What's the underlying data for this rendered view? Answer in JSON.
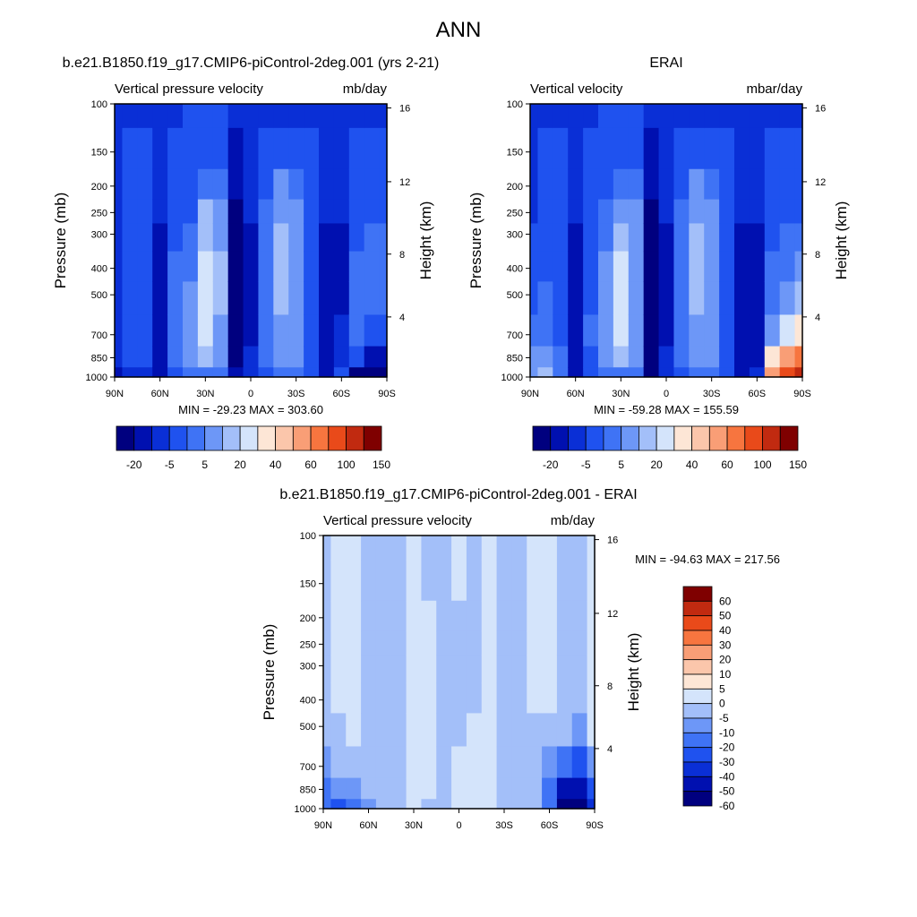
{
  "title": "ANN",
  "colors": {
    "main_scale": [
      "#00007f",
      "#0010b0",
      "#0a2fd6",
      "#1f52ef",
      "#3f73f5",
      "#6d97f7",
      "#a3bff9",
      "#d4e4fb",
      "#fde6d6",
      "#fbc6ab",
      "#f99e76",
      "#f7753f",
      "#e94a1a",
      "#c12a10",
      "#7f0000"
    ],
    "diff_scale": [
      "#00007f",
      "#0010b0",
      "#0a2fd6",
      "#1f52ef",
      "#3f73f5",
      "#6d97f7",
      "#a3bff9",
      "#d4e4fb",
      "#fde6d6",
      "#fbc6ab",
      "#f99e76",
      "#f7753f",
      "#e94a1a",
      "#c12a10",
      "#7f0000"
    ]
  },
  "chart_data": [
    {
      "type": "heatmap",
      "title": "b.e21.B1850.f19_g17.CMIP6-piControl-2deg.001 (yrs 2-21)",
      "left_label": "Vertical pressure velocity",
      "units": "mb/day",
      "ylabel": "Pressure (mb)",
      "y2label": "Height (km)",
      "xticks": [
        "90N",
        "60N",
        "30N",
        "0",
        "30S",
        "60S",
        "90S"
      ],
      "yticks": [
        "100",
        "150",
        "200",
        "250",
        "300",
        "400",
        "500",
        "700",
        "850",
        "1000"
      ],
      "y2ticks": [
        "16",
        "12",
        "8",
        "4"
      ],
      "stats": "MIN = -29.23  MAX = 303.60",
      "colorbar_labels": [
        "-20",
        "-5",
        "5",
        "20",
        "40",
        "60",
        "100",
        "150"
      ],
      "field": [
        {
          "lat": 90,
          "v": [
            -12,
            -12,
            -12,
            -12,
            -12,
            -12,
            -12,
            -12,
            -14,
            -16
          ]
        },
        {
          "lat": 80,
          "v": [
            -12,
            -10,
            -10,
            -10,
            -8,
            -8,
            -8,
            -6,
            -8,
            -12
          ]
        },
        {
          "lat": 70,
          "v": [
            -12,
            -10,
            -10,
            -8,
            -6,
            -6,
            -6,
            -6,
            -10,
            -14
          ]
        },
        {
          "lat": 60,
          "v": [
            -12,
            -12,
            -12,
            -14,
            -16,
            -16,
            -16,
            -18,
            -20,
            -20
          ]
        },
        {
          "lat": 50,
          "v": [
            -12,
            -10,
            -10,
            -8,
            -6,
            -4,
            -4,
            -2,
            -4,
            -10
          ]
        },
        {
          "lat": 40,
          "v": [
            -10,
            -8,
            -8,
            -6,
            -4,
            -2,
            2,
            4,
            2,
            -4
          ]
        },
        {
          "lat": 30,
          "v": [
            -10,
            -6,
            -2,
            5,
            8,
            10,
            12,
            12,
            8,
            -2
          ]
        },
        {
          "lat": 20,
          "v": [
            -10,
            -6,
            -2,
            2,
            4,
            6,
            6,
            4,
            2,
            -4
          ]
        },
        {
          "lat": 10,
          "v": [
            -12,
            -16,
            -20,
            -22,
            -25,
            -26,
            -27,
            -27,
            -26,
            -20
          ]
        },
        {
          "lat": 0,
          "v": [
            -12,
            -12,
            -14,
            -14,
            -16,
            -16,
            -16,
            -16,
            -14,
            -12
          ]
        },
        {
          "lat": -10,
          "v": [
            -12,
            -10,
            -8,
            -4,
            -2,
            -2,
            -2,
            -2,
            -4,
            -6
          ]
        },
        {
          "lat": -20,
          "v": [
            -12,
            -6,
            0,
            4,
            6,
            6,
            6,
            4,
            2,
            -2
          ]
        },
        {
          "lat": -30,
          "v": [
            -12,
            -8,
            -4,
            0,
            2,
            2,
            2,
            2,
            0,
            -4
          ]
        },
        {
          "lat": -40,
          "v": [
            -12,
            -10,
            -8,
            -6,
            -6,
            -6,
            -6,
            -6,
            -6,
            -8
          ]
        },
        {
          "lat": -50,
          "v": [
            -12,
            -12,
            -12,
            -14,
            -16,
            -18,
            -18,
            -18,
            -18,
            -16
          ]
        },
        {
          "lat": -60,
          "v": [
            -12,
            -12,
            -12,
            -14,
            -16,
            -16,
            -16,
            -14,
            -12,
            -10
          ]
        },
        {
          "lat": -70,
          "v": [
            -12,
            -10,
            -10,
            -8,
            -6,
            -4,
            -2,
            -2,
            -10,
            -22
          ]
        },
        {
          "lat": -80,
          "v": [
            -12,
            -10,
            -8,
            -6,
            -4,
            -2,
            -4,
            -10,
            -20,
            -28
          ]
        },
        {
          "lat": -90,
          "v": [
            -12,
            -10,
            -8,
            -6,
            -4,
            -2,
            -4,
            -8,
            -18,
            -24
          ]
        }
      ]
    },
    {
      "type": "heatmap",
      "title": "ERAI",
      "left_label": "Vertical velocity",
      "units": "mbar/day",
      "ylabel": "Pressure (mb)",
      "y2label": "Height (km)",
      "xticks": [
        "90N",
        "60N",
        "30N",
        "0",
        "30S",
        "60S",
        "90S"
      ],
      "yticks": [
        "100",
        "150",
        "200",
        "250",
        "300",
        "400",
        "500",
        "700",
        "850",
        "1000"
      ],
      "y2ticks": [
        "16",
        "12",
        "8",
        "4"
      ],
      "stats": "MIN = -59.28  MAX = 155.59",
      "colorbar_labels": [
        "-20",
        "-5",
        "5",
        "20",
        "40",
        "60",
        "100",
        "150"
      ],
      "field": [
        {
          "lat": 90,
          "v": [
            -12,
            -12,
            -12,
            -12,
            -10,
            -8,
            -6,
            -4,
            0,
            4
          ]
        },
        {
          "lat": 80,
          "v": [
            -12,
            -10,
            -10,
            -8,
            -8,
            -6,
            -4,
            -2,
            2,
            6
          ]
        },
        {
          "lat": 70,
          "v": [
            -12,
            -10,
            -10,
            -10,
            -8,
            -8,
            -8,
            -6,
            -4,
            -2
          ]
        },
        {
          "lat": 60,
          "v": [
            -12,
            -12,
            -12,
            -14,
            -16,
            -16,
            -16,
            -16,
            -18,
            -20
          ]
        },
        {
          "lat": 50,
          "v": [
            -12,
            -10,
            -10,
            -8,
            -8,
            -6,
            -6,
            -4,
            -6,
            -10
          ]
        },
        {
          "lat": 40,
          "v": [
            -10,
            -8,
            -6,
            -4,
            -2,
            0,
            2,
            2,
            0,
            -4
          ]
        },
        {
          "lat": 30,
          "v": [
            -10,
            -6,
            -2,
            4,
            8,
            10,
            12,
            10,
            6,
            -2
          ]
        },
        {
          "lat": 20,
          "v": [
            -10,
            -6,
            -2,
            0,
            2,
            4,
            4,
            2,
            0,
            -4
          ]
        },
        {
          "lat": 10,
          "v": [
            -12,
            -16,
            -20,
            -22,
            -25,
            -26,
            -27,
            -27,
            -26,
            -22
          ]
        },
        {
          "lat": 0,
          "v": [
            -12,
            -12,
            -14,
            -14,
            -16,
            -16,
            -16,
            -16,
            -14,
            -12
          ]
        },
        {
          "lat": -10,
          "v": [
            -12,
            -10,
            -8,
            -4,
            -2,
            -2,
            -2,
            -2,
            -4,
            -6
          ]
        },
        {
          "lat": -20,
          "v": [
            -12,
            -6,
            0,
            4,
            6,
            6,
            6,
            4,
            2,
            -2
          ]
        },
        {
          "lat": -30,
          "v": [
            -12,
            -8,
            -4,
            0,
            2,
            2,
            2,
            2,
            0,
            -4
          ]
        },
        {
          "lat": -40,
          "v": [
            -12,
            -10,
            -8,
            -6,
            -6,
            -6,
            -6,
            -6,
            -6,
            -8
          ]
        },
        {
          "lat": -50,
          "v": [
            -12,
            -12,
            -12,
            -14,
            -16,
            -18,
            -18,
            -18,
            -18,
            -16
          ]
        },
        {
          "lat": -60,
          "v": [
            -12,
            -12,
            -12,
            -14,
            -16,
            -18,
            -20,
            -20,
            -18,
            -14
          ]
        },
        {
          "lat": -70,
          "v": [
            -12,
            -10,
            -10,
            -8,
            -6,
            -4,
            -2,
            4,
            20,
            40
          ]
        },
        {
          "lat": -80,
          "v": [
            -12,
            -10,
            -8,
            -6,
            -4,
            -2,
            2,
            15,
            45,
            70
          ]
        },
        {
          "lat": -90,
          "v": [
            -12,
            -10,
            -8,
            -6,
            -4,
            0,
            5,
            25,
            55,
            80
          ]
        }
      ]
    },
    {
      "type": "heatmap",
      "title": "b.e21.B1850.f19_g17.CMIP6-piControl-2deg.001 - ERAI",
      "left_label": "Vertical pressure velocity",
      "units": "mb/day",
      "ylabel": "Pressure (mb)",
      "y2label": "Height (km)",
      "xticks": [
        "90N",
        "60N",
        "30N",
        "0",
        "30S",
        "60S",
        "90S"
      ],
      "yticks": [
        "100",
        "150",
        "200",
        "250",
        "300",
        "400",
        "500",
        "700",
        "850",
        "1000"
      ],
      "y2ticks": [
        "16",
        "12",
        "8",
        "4"
      ],
      "stats": "MIN = -94.63  MAX = 217.56",
      "colorbar_labels": [
        "60",
        "50",
        "40",
        "30",
        "20",
        "10",
        "5",
        "0",
        "-5",
        "-10",
        "-20",
        "-30",
        "-40",
        "-50",
        "-60"
      ],
      "field": [
        {
          "lat": 90,
          "v": [
            -2,
            -2,
            -2,
            -2,
            -2,
            -3,
            -4,
            -6,
            -12,
            -20
          ]
        },
        {
          "lat": 80,
          "v": [
            2,
            2,
            2,
            2,
            2,
            2,
            -2,
            -4,
            -10,
            -22
          ]
        },
        {
          "lat": 70,
          "v": [
            2,
            2,
            2,
            2,
            2,
            2,
            2,
            -2,
            -8,
            -18
          ]
        },
        {
          "lat": 60,
          "v": [
            -2,
            -2,
            -2,
            -2,
            -2,
            -2,
            -2,
            -2,
            -2,
            -8
          ]
        },
        {
          "lat": 50,
          "v": [
            -2,
            -2,
            -2,
            -2,
            -2,
            -2,
            -2,
            -2,
            -2,
            -2
          ]
        },
        {
          "lat": 40,
          "v": [
            -2,
            -2,
            -2,
            -2,
            -2,
            -2,
            -2,
            -2,
            -2,
            -2
          ]
        },
        {
          "lat": 30,
          "v": [
            2,
            2,
            2,
            2,
            2,
            2,
            2,
            2,
            2,
            2
          ]
        },
        {
          "lat": 20,
          "v": [
            -2,
            -2,
            2,
            2,
            2,
            2,
            2,
            2,
            2,
            -2
          ]
        },
        {
          "lat": 10,
          "v": [
            -2,
            -2,
            -2,
            -2,
            -2,
            -2,
            -2,
            -2,
            -2,
            -2
          ]
        },
        {
          "lat": 0,
          "v": [
            2,
            2,
            -2,
            -2,
            -2,
            -2,
            -2,
            2,
            2,
            2
          ]
        },
        {
          "lat": -10,
          "v": [
            -2,
            -2,
            -2,
            -2,
            -2,
            -2,
            2,
            2,
            2,
            2
          ]
        },
        {
          "lat": -20,
          "v": [
            2,
            2,
            2,
            2,
            2,
            2,
            2,
            2,
            2,
            2
          ]
        },
        {
          "lat": -30,
          "v": [
            -2,
            -2,
            -2,
            -2,
            -2,
            -2,
            -2,
            -2,
            -2,
            -2
          ]
        },
        {
          "lat": -40,
          "v": [
            -2,
            -2,
            -2,
            -2,
            -2,
            -2,
            -2,
            -2,
            -2,
            -2
          ]
        },
        {
          "lat": -50,
          "v": [
            2,
            2,
            2,
            2,
            2,
            2,
            -2,
            -2,
            -2,
            -2
          ]
        },
        {
          "lat": -60,
          "v": [
            2,
            2,
            2,
            2,
            2,
            2,
            -2,
            -6,
            -12,
            -18
          ]
        },
        {
          "lat": -70,
          "v": [
            -2,
            -2,
            -2,
            -2,
            -2,
            -2,
            -4,
            -20,
            -45,
            -60
          ]
        },
        {
          "lat": -80,
          "v": [
            -2,
            -2,
            -2,
            -2,
            -2,
            -4,
            -8,
            -30,
            -50,
            -55
          ]
        },
        {
          "lat": -90,
          "v": [
            2,
            2,
            2,
            2,
            2,
            2,
            2,
            -10,
            -30,
            -40
          ]
        }
      ]
    }
  ]
}
